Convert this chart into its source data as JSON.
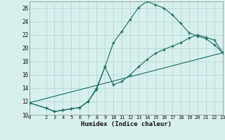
{
  "xlabel": "Humidex (Indice chaleur)",
  "bg_color": "#d7f0ee",
  "line_color": "#1a6b5a",
  "grid_color": "#b5d8d4",
  "xlim": [
    0,
    23
  ],
  "ylim": [
    10,
    27
  ],
  "xticks": [
    0,
    2,
    3,
    4,
    5,
    6,
    7,
    8,
    9,
    10,
    11,
    12,
    13,
    14,
    15,
    16,
    17,
    18,
    19,
    20,
    21,
    22,
    23
  ],
  "yticks": [
    10,
    12,
    14,
    16,
    18,
    20,
    22,
    24,
    26
  ],
  "series": [
    {
      "x": [
        0,
        2,
        3,
        4,
        5,
        6,
        7,
        8,
        9,
        10,
        11,
        12,
        13,
        14,
        15,
        16,
        17,
        18,
        19,
        20,
        21,
        22,
        23
      ],
      "y": [
        11.8,
        11.0,
        10.5,
        10.7,
        10.9,
        11.1,
        12.0,
        13.8,
        17.2,
        20.8,
        22.5,
        24.3,
        26.1,
        27.0,
        26.5,
        26.0,
        25.0,
        23.7,
        22.3,
        21.8,
        21.4,
        20.5,
        19.3
      ]
    },
    {
      "x": [
        0,
        23
      ],
      "y": [
        11.8,
        19.3
      ]
    },
    {
      "x": [
        0,
        2,
        3,
        4,
        5,
        6,
        7,
        8,
        9,
        10,
        11,
        12,
        13,
        14,
        15,
        16,
        17,
        18,
        19,
        20,
        21,
        22,
        23
      ],
      "y": [
        11.8,
        11.0,
        10.5,
        10.7,
        10.9,
        11.1,
        12.0,
        14.0,
        17.2,
        14.5,
        15.0,
        16.0,
        17.2,
        18.3,
        19.2,
        19.8,
        20.3,
        20.8,
        21.5,
        22.0,
        21.6,
        21.2,
        19.3
      ]
    }
  ]
}
